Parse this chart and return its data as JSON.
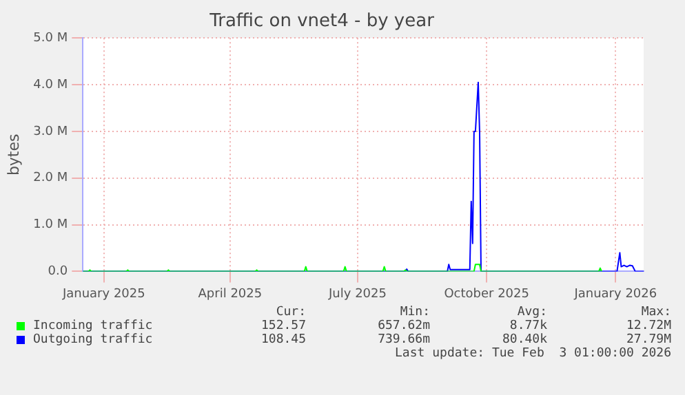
{
  "chart_data": {
    "type": "line",
    "title": "Traffic on vnet4 - by year",
    "ylabel": "bytes",
    "xlim": [
      "2024-12-17",
      "2026-01-21"
    ],
    "xticks": [
      {
        "value": "2025-01-01",
        "label": "January 2025"
      },
      {
        "value": "2025-04-01",
        "label": "April 2025"
      },
      {
        "value": "2025-07-01",
        "label": "July 2025"
      },
      {
        "value": "2025-10-01",
        "label": "October 2025"
      },
      {
        "value": "2026-01-01",
        "label": "January 2026"
      }
    ],
    "ylim": [
      0,
      5000000
    ],
    "yticks": [
      {
        "value": 0,
        "label": "0.0"
      },
      {
        "value": 1000000,
        "label": "1.0 M"
      },
      {
        "value": 2000000,
        "label": "2.0 M"
      },
      {
        "value": 3000000,
        "label": "3.0 M"
      },
      {
        "value": 4000000,
        "label": "4.0 M"
      },
      {
        "value": 5000000,
        "label": "5.0 M"
      }
    ],
    "grid": true,
    "legend": "bottom",
    "marker": "none",
    "line_style": "solid",
    "series": [
      {
        "name": "Incoming traffic",
        "color": "#00ff00",
        "x": [
          "2024-12-17",
          "2024-12-21",
          "2024-12-22",
          "2024-12-23",
          "2025-01-17",
          "2025-01-18",
          "2025-01-19",
          "2025-02-15",
          "2025-02-16",
          "2025-02-17",
          "2025-04-19",
          "2025-04-20",
          "2025-04-21",
          "2025-05-24",
          "2025-05-25",
          "2025-05-26",
          "2025-06-21",
          "2025-06-22",
          "2025-06-23",
          "2025-07-19",
          "2025-07-20",
          "2025-07-21",
          "2025-08-03",
          "2025-08-04",
          "2025-08-05",
          "2025-09-22",
          "2025-09-23",
          "2025-09-26",
          "2025-09-27",
          "2025-12-20",
          "2025-12-21",
          "2025-12-22"
        ],
        "values": [
          0,
          0,
          30000,
          0,
          0,
          30000,
          0,
          0,
          30000,
          0,
          0,
          30000,
          0,
          0,
          100000,
          0,
          0,
          100000,
          0,
          0,
          100000,
          0,
          0,
          30000,
          0,
          0,
          150000,
          150000,
          0,
          0,
          70000,
          0
        ]
      },
      {
        "name": "Outgoing traffic",
        "color": "#0000ff",
        "x": [
          "2024-12-17",
          "2025-08-04",
          "2025-08-05",
          "2025-08-06",
          "2025-09-03",
          "2025-09-04",
          "2025-09-05",
          "2025-09-19",
          "2025-09-20",
          "2025-09-21",
          "2025-09-22",
          "2025-09-23",
          "2025-09-25",
          "2025-09-26",
          "2025-09-27",
          "2026-01-02",
          "2026-01-04",
          "2026-01-05",
          "2026-01-07",
          "2026-01-09",
          "2026-01-11",
          "2026-01-13",
          "2026-01-15",
          "2026-01-21"
        ],
        "values": [
          0,
          0,
          50000,
          0,
          0,
          150000,
          40000,
          40000,
          1500000,
          600000,
          3000000,
          3000000,
          4050000,
          2970000,
          0,
          0,
          400000,
          100000,
          130000,
          100000,
          130000,
          120000,
          0,
          0
        ]
      }
    ],
    "annotations": [
      "Cur:",
      "Min:",
      "Avg:",
      "Max:",
      "152.57",
      "657.62m",
      "8.77k",
      "12.72M",
      "108.45",
      "739.66m",
      "80.40k",
      "27.79M",
      "Last update: Tue Feb  3 01:00:00 2026"
    ]
  }
}
